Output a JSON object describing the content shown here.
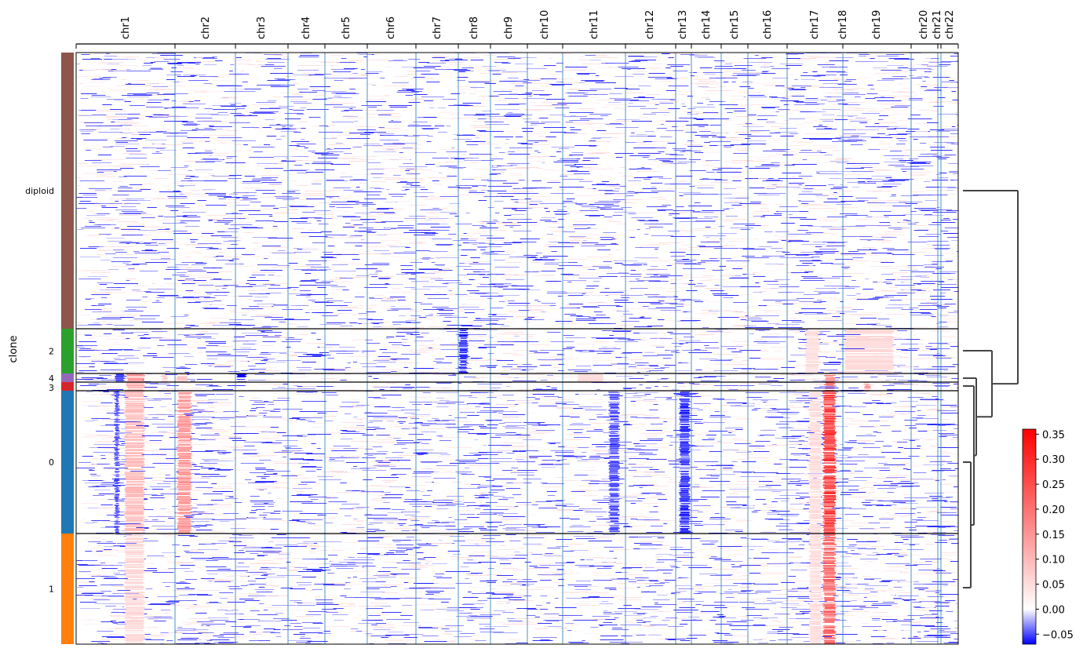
{
  "chart_data": {
    "type": "heatmap",
    "title": "",
    "ylabel": "clone",
    "chromosomes": [
      {
        "name": "chr1",
        "width": 249
      },
      {
        "name": "chr2",
        "width": 243
      },
      {
        "name": "chr3",
        "width": 198
      },
      {
        "name": "chr4",
        "width": 190
      },
      {
        "name": "chr5",
        "width": 181
      },
      {
        "name": "chr6",
        "width": 171
      },
      {
        "name": "chr7",
        "width": 159
      },
      {
        "name": "chr8",
        "width": 145
      },
      {
        "name": "chr9",
        "width": 138
      },
      {
        "name": "chr10",
        "width": 134
      },
      {
        "name": "chr11",
        "width": 135
      },
      {
        "name": "chr12",
        "width": 133
      },
      {
        "name": "chr13",
        "width": 114
      },
      {
        "name": "chr14",
        "width": 107
      },
      {
        "name": "chr15",
        "width": 102
      },
      {
        "name": "chr16",
        "width": 90
      },
      {
        "name": "chr17",
        "width": 83
      },
      {
        "name": "chr18",
        "width": 80
      },
      {
        "name": "chr19",
        "width": 59
      },
      {
        "name": "chr20",
        "width": 64
      },
      {
        "name": "chr21",
        "width": 47
      },
      {
        "name": "chr22",
        "width": 51
      }
    ],
    "chromosome_widths_note_unused": "",
    "groups": [
      {
        "name": "diploid",
        "color": "#8c564b",
        "cells": 352
      },
      {
        "name": "2",
        "color": "#2ca02c",
        "cells": 58
      },
      {
        "name": "4",
        "color": "#9467bd",
        "cells": 10
      },
      {
        "name": "3",
        "color": "#d62728",
        "cells": 11
      },
      {
        "name": "0",
        "color": "#1f77b4",
        "cells": 182
      },
      {
        "name": "1",
        "color": "#ff7f0e",
        "cells": 140
      }
    ],
    "colorbar": {
      "min": -0.07,
      "max": 0.36,
      "ticks": [
        "0.35",
        "0.30",
        "0.25",
        "0.20",
        "0.15",
        "0.10",
        "0.05",
        "0.00",
        "−0.05"
      ],
      "tick_values": [
        0.35,
        0.3,
        0.25,
        0.2,
        0.15,
        0.1,
        0.05,
        0.0,
        -0.05
      ],
      "colors": [
        "#0000ff",
        "#ffffff",
        "#ff0000"
      ]
    },
    "dendrogram": {
      "leaves": [
        "diploid",
        "2",
        "4",
        "3",
        "0",
        "1"
      ],
      "merges": [
        [
          "0",
          "1"
        ],
        [
          "3",
          "0+1"
        ],
        [
          "4",
          "3+0+1"
        ],
        [
          "2",
          "4+3+0+1"
        ],
        [
          "diploid",
          "rest"
        ]
      ]
    },
    "grid": false,
    "legend": "colorbar-right"
  }
}
